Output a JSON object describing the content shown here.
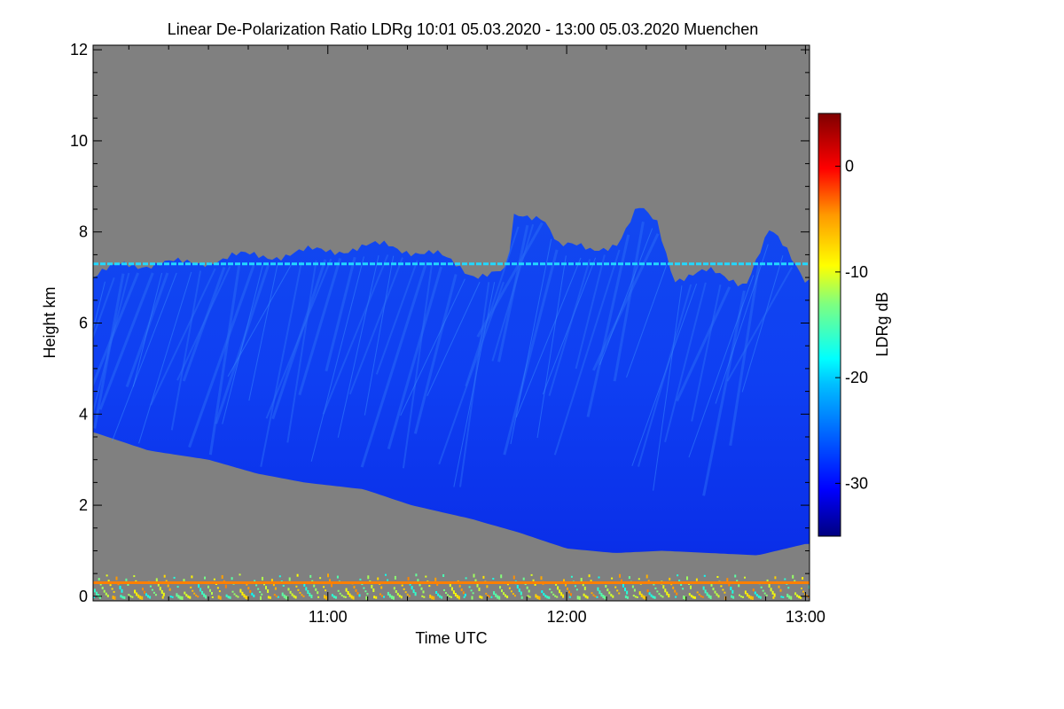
{
  "chart_data": {
    "type": "heatmap",
    "title": "Linear De-Polarization Ratio LDRg   10:01 05.03.2020 - 13:00 05.03.2020 Muenchen",
    "xlabel": "Time UTC",
    "ylabel": "Height km",
    "colorbar_label": "LDRg dB",
    "xlim_hours": [
      10.017,
      13.017
    ],
    "ylim_km": [
      -0.1,
      12.1
    ],
    "x_ticks": [
      {
        "value": 11.0,
        "label": "11:00"
      },
      {
        "value": 12.0,
        "label": "12:00"
      },
      {
        "value": 13.0,
        "label": "13:00"
      }
    ],
    "y_ticks": [
      {
        "value": 0,
        "label": "0"
      },
      {
        "value": 2,
        "label": "2"
      },
      {
        "value": 4,
        "label": "4"
      },
      {
        "value": 6,
        "label": "6"
      },
      {
        "value": 8,
        "label": "8"
      },
      {
        "value": 10,
        "label": "10"
      },
      {
        "value": 12,
        "label": "12"
      }
    ],
    "colorbar_range_db": [
      -35,
      5
    ],
    "colorbar_ticks": [
      {
        "value": 0,
        "label": "0"
      },
      {
        "value": -10,
        "label": "-10"
      },
      {
        "value": -20,
        "label": "-20"
      },
      {
        "value": -30,
        "label": "-30"
      }
    ],
    "no_signal_color": "#808080",
    "colormap": [
      "#00007f",
      "#0000ff",
      "#007fff",
      "#00ffff",
      "#7fff7f",
      "#ffff00",
      "#ff7f00",
      "#ff0000",
      "#7f0000"
    ],
    "cloud_layer": {
      "typical_ldr_db": -30,
      "top_km": [
        {
          "t": 10.02,
          "h": 7.0
        },
        {
          "t": 10.15,
          "h": 7.3
        },
        {
          "t": 10.4,
          "h": 7.3
        },
        {
          "t": 10.6,
          "h": 7.45
        },
        {
          "t": 10.8,
          "h": 7.5
        },
        {
          "t": 11.0,
          "h": 7.6
        },
        {
          "t": 11.25,
          "h": 7.7
        },
        {
          "t": 11.45,
          "h": 7.5
        },
        {
          "t": 11.6,
          "h": 7.1
        },
        {
          "t": 11.75,
          "h": 7.1
        },
        {
          "t": 11.78,
          "h": 8.3
        },
        {
          "t": 11.9,
          "h": 8.4
        },
        {
          "t": 11.97,
          "h": 7.7
        },
        {
          "t": 12.1,
          "h": 7.6
        },
        {
          "t": 12.22,
          "h": 7.8
        },
        {
          "t": 12.3,
          "h": 8.5
        },
        {
          "t": 12.38,
          "h": 8.2
        },
        {
          "t": 12.45,
          "h": 7.0
        },
        {
          "t": 12.6,
          "h": 7.1
        },
        {
          "t": 12.75,
          "h": 6.9
        },
        {
          "t": 12.85,
          "h": 8.0
        },
        {
          "t": 12.92,
          "h": 7.6
        },
        {
          "t": 13.0,
          "h": 7.0
        }
      ],
      "base_km": [
        {
          "t": 10.02,
          "h": 3.6
        },
        {
          "t": 10.25,
          "h": 3.2
        },
        {
          "t": 10.5,
          "h": 3.0
        },
        {
          "t": 10.7,
          "h": 2.7
        },
        {
          "t": 10.9,
          "h": 2.5
        },
        {
          "t": 11.15,
          "h": 2.35
        },
        {
          "t": 11.35,
          "h": 2.0
        },
        {
          "t": 11.6,
          "h": 1.7
        },
        {
          "t": 11.8,
          "h": 1.4
        },
        {
          "t": 12.0,
          "h": 1.05
        },
        {
          "t": 12.2,
          "h": 0.95
        },
        {
          "t": 12.4,
          "h": 1.0
        },
        {
          "t": 12.6,
          "h": 0.95
        },
        {
          "t": 12.8,
          "h": 0.9
        },
        {
          "t": 13.0,
          "h": 1.15
        }
      ]
    },
    "layer_features": [
      {
        "name": "aerosol-line-7.3km",
        "height_km": 7.3,
        "ldr_db": -22
      },
      {
        "name": "ground-layer-0.3km",
        "height_km": 0.3,
        "ldr_db": -5
      },
      {
        "name": "ground-clutter",
        "height_km_range": [
          0.0,
          0.5
        ],
        "ldr_db_range": [
          -20,
          -5
        ]
      }
    ]
  }
}
